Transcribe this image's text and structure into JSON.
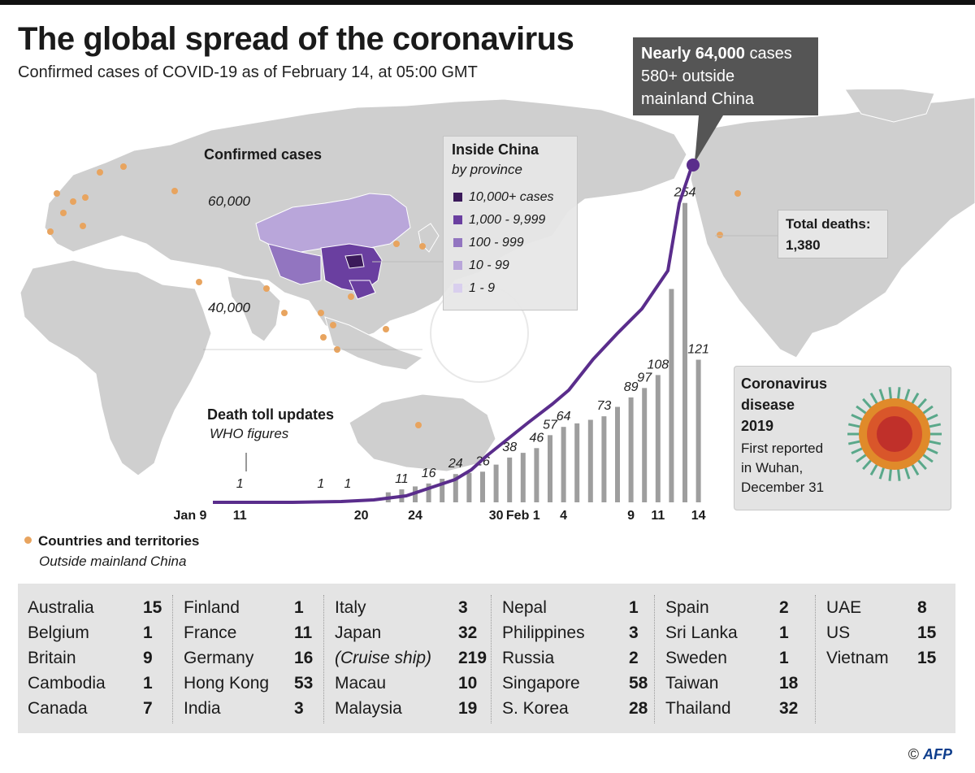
{
  "header": {
    "title": "The global spread of the coronavirus",
    "subtitle": "Confirmed cases of COVID-19 as of February 14, at 05:00 GMT"
  },
  "callout": {
    "bold": "Nearly 64,000",
    "rest": " cases",
    "line2": "580+ outside",
    "line3": "mainland China"
  },
  "deaths": {
    "label": "Total deaths:",
    "value": "1,380"
  },
  "china_legend": {
    "title": "Inside China",
    "subtitle": "by province",
    "items": [
      {
        "label": "10,000+ cases",
        "color": "#3b1a5a"
      },
      {
        "label": "1,000 - 9,999",
        "color": "#6a3fa0"
      },
      {
        "label": "100 - 999",
        "color": "#9275c0"
      },
      {
        "label": "10 - 99",
        "color": "#b9a6da"
      },
      {
        "label": "1 - 9",
        "color": "#d9cfee"
      }
    ]
  },
  "virus_box": {
    "title1": "Coronavirus",
    "title2": "disease",
    "title3": "2019",
    "text1": "First reported",
    "text2": "in Wuhan,",
    "text3": "December 31"
  },
  "countries_legend": {
    "title": "Countries and territories",
    "subtitle": "Outside mainland China",
    "dot_color": "#e8a45f"
  },
  "chart_labels": {
    "cases_label": "Confirmed cases",
    "tick_60000": "60,000",
    "tick_40000": "40,000",
    "death_title": "Death toll updates",
    "death_sub": "WHO figures"
  },
  "chart_data": {
    "type": "line+bar",
    "title": "Confirmed cases",
    "line_series": {
      "name": "Confirmed cases",
      "color": "#5a2d8c",
      "x_range": [
        "Jan 9",
        "Feb 14"
      ],
      "y_ticks": [
        40000,
        60000
      ],
      "final_value": 64000
    },
    "bar_series": {
      "name": "Death toll updates",
      "color": "#9e9e9e",
      "labels": [
        {
          "date": "Jan 11",
          "value": 1
        },
        {
          "date": "Jan 17",
          "value": 1
        },
        {
          "date": "Jan 19",
          "value": 1
        },
        {
          "date": "Jan 23",
          "value": 11
        },
        {
          "date": "Jan 25",
          "value": 16
        },
        {
          "date": "Jan 27",
          "value": 24
        },
        {
          "date": "Jan 29",
          "value": 26
        },
        {
          "date": "Jan 31",
          "value": 38
        },
        {
          "date": "Feb 2",
          "value": 46
        },
        {
          "date": "Feb 3",
          "value": 57
        },
        {
          "date": "Feb 4",
          "value": 64
        },
        {
          "date": "Feb 7",
          "value": 73
        },
        {
          "date": "Feb 9",
          "value": 89
        },
        {
          "date": "Feb 10",
          "value": 97
        },
        {
          "date": "Feb 11",
          "value": 108
        },
        {
          "date": "Feb 13",
          "value": 254
        },
        {
          "date": "Feb 14",
          "value": 121
        }
      ]
    },
    "x_tick_labels": [
      "Jan 9",
      "11",
      "20",
      "24",
      "30",
      "Feb 1",
      "4",
      "9",
      "11",
      "14"
    ]
  },
  "countries": [
    [
      {
        "name": "Australia",
        "value": "15"
      },
      {
        "name": "Belgium",
        "value": "1"
      },
      {
        "name": "Britain",
        "value": "9"
      },
      {
        "name": "Cambodia",
        "value": "1"
      },
      {
        "name": "Canada",
        "value": "7"
      }
    ],
    [
      {
        "name": "Finland",
        "value": "1"
      },
      {
        "name": "France",
        "value": "11"
      },
      {
        "name": "Germany",
        "value": "16"
      },
      {
        "name": "Hong Kong",
        "value": "53"
      },
      {
        "name": "India",
        "value": "3"
      }
    ],
    [
      {
        "name": "Italy",
        "value": "3"
      },
      {
        "name": "Japan",
        "value": "32"
      },
      {
        "name": "(Cruise ship)",
        "value": "219",
        "italic": true
      },
      {
        "name": "Macau",
        "value": "10"
      },
      {
        "name": "Malaysia",
        "value": "19"
      }
    ],
    [
      {
        "name": "Nepal",
        "value": "1"
      },
      {
        "name": "Philippines",
        "value": "3"
      },
      {
        "name": "Russia",
        "value": "2"
      },
      {
        "name": "Singapore",
        "value": "58"
      },
      {
        "name": "S. Korea",
        "value": "28"
      }
    ],
    [
      {
        "name": "Spain",
        "value": "2"
      },
      {
        "name": "Sri Lanka",
        "value": "1"
      },
      {
        "name": "Sweden",
        "value": "1"
      },
      {
        "name": "Taiwan",
        "value": "18"
      },
      {
        "name": "Thailand",
        "value": "32"
      }
    ],
    [
      {
        "name": "UAE",
        "value": "8"
      },
      {
        "name": "US",
        "value": "15"
      },
      {
        "name": "Vietnam",
        "value": "15"
      }
    ]
  ],
  "credit": {
    "symbol": "©",
    "brand": "AFP"
  }
}
